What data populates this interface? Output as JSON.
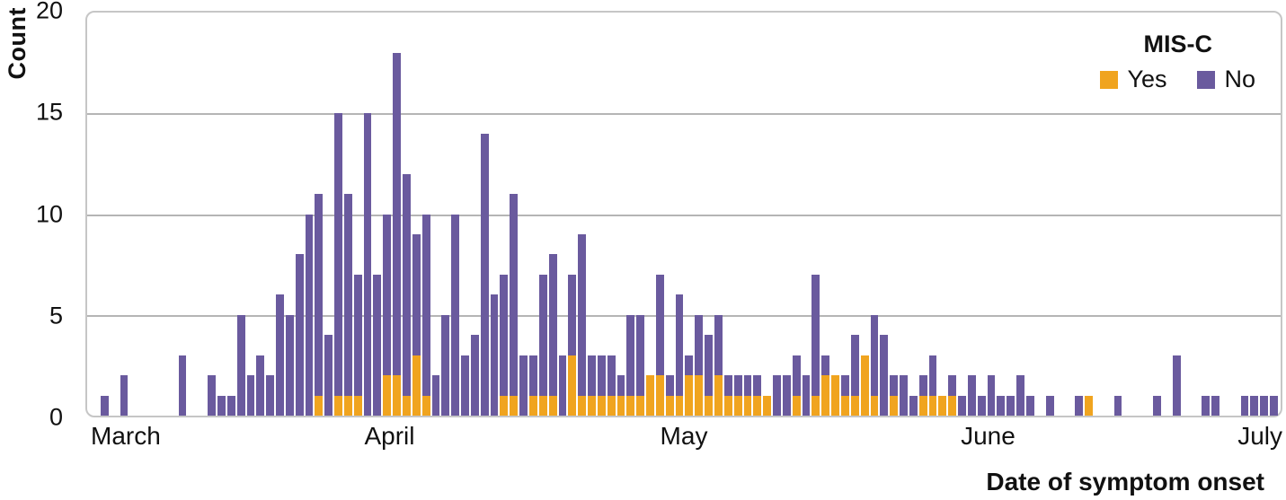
{
  "chart_data": {
    "type": "bar",
    "stacked": true,
    "title": "",
    "xlabel": "Date of symptom onset",
    "ylabel": "Count",
    "ylim": [
      0,
      20
    ],
    "yticks": [
      0,
      5,
      10,
      15,
      20
    ],
    "grid": "horizontal",
    "x_unit": "day",
    "x_start": "March 1",
    "x_end": "July 1",
    "month_ticks": [
      "March",
      "April",
      "May",
      "June",
      "July"
    ],
    "month_tick_positions": [
      0,
      31,
      61,
      92,
      122
    ],
    "total_days": 122,
    "legend": {
      "title": "MIS-C",
      "position": "top-right",
      "entries": [
        {
          "label": "Yes",
          "color": "#f0a41f"
        },
        {
          "label": "No",
          "color": "#6a5a9e"
        }
      ]
    },
    "series_note": "yes = MIS-C Yes (orange, bottom of stack); no = MIS-C No (purple, top of stack); one value per day from March 1 to June 30",
    "yes": [
      0,
      0,
      0,
      0,
      0,
      0,
      0,
      0,
      0,
      0,
      0,
      0,
      0,
      0,
      0,
      0,
      0,
      0,
      0,
      0,
      0,
      0,
      0,
      1,
      0,
      1,
      1,
      1,
      0,
      0,
      2,
      2,
      1,
      3,
      1,
      0,
      0,
      0,
      0,
      0,
      0,
      0,
      1,
      1,
      0,
      1,
      1,
      1,
      0,
      3,
      1,
      1,
      1,
      1,
      1,
      1,
      1,
      2,
      2,
      1,
      1,
      2,
      2,
      1,
      2,
      1,
      1,
      1,
      1,
      1,
      0,
      0,
      1,
      0,
      1,
      2,
      2,
      1,
      1,
      3,
      1,
      0,
      1,
      0,
      0,
      1,
      1,
      1,
      1,
      0,
      0,
      0,
      0,
      0,
      0,
      0,
      0,
      0,
      0,
      0,
      0,
      0,
      1,
      0,
      0,
      0,
      0,
      0,
      0,
      0,
      0,
      0,
      0,
      0,
      0,
      0,
      0,
      0,
      0,
      0,
      0,
      0
    ],
    "no": [
      0,
      1,
      0,
      2,
      0,
      0,
      0,
      0,
      0,
      3,
      0,
      0,
      2,
      1,
      1,
      5,
      2,
      3,
      2,
      6,
      5,
      8,
      10,
      10,
      4,
      14,
      10,
      6,
      15,
      7,
      8,
      16,
      11,
      6,
      9,
      2,
      5,
      10,
      3,
      4,
      14,
      6,
      6,
      10,
      3,
      2,
      6,
      7,
      3,
      4,
      8,
      2,
      2,
      2,
      1,
      4,
      4,
      0,
      5,
      1,
      5,
      1,
      3,
      3,
      3,
      1,
      1,
      1,
      1,
      0,
      2,
      2,
      2,
      2,
      6,
      1,
      0,
      1,
      3,
      0,
      4,
      4,
      1,
      2,
      1,
      1,
      2,
      0,
      1,
      1,
      2,
      1,
      2,
      1,
      1,
      2,
      1,
      0,
      1,
      0,
      0,
      1,
      0,
      0,
      0,
      1,
      0,
      0,
      0,
      1,
      0,
      3,
      0,
      0,
      1,
      1,
      0,
      0,
      1,
      1,
      1,
      1
    ]
  }
}
